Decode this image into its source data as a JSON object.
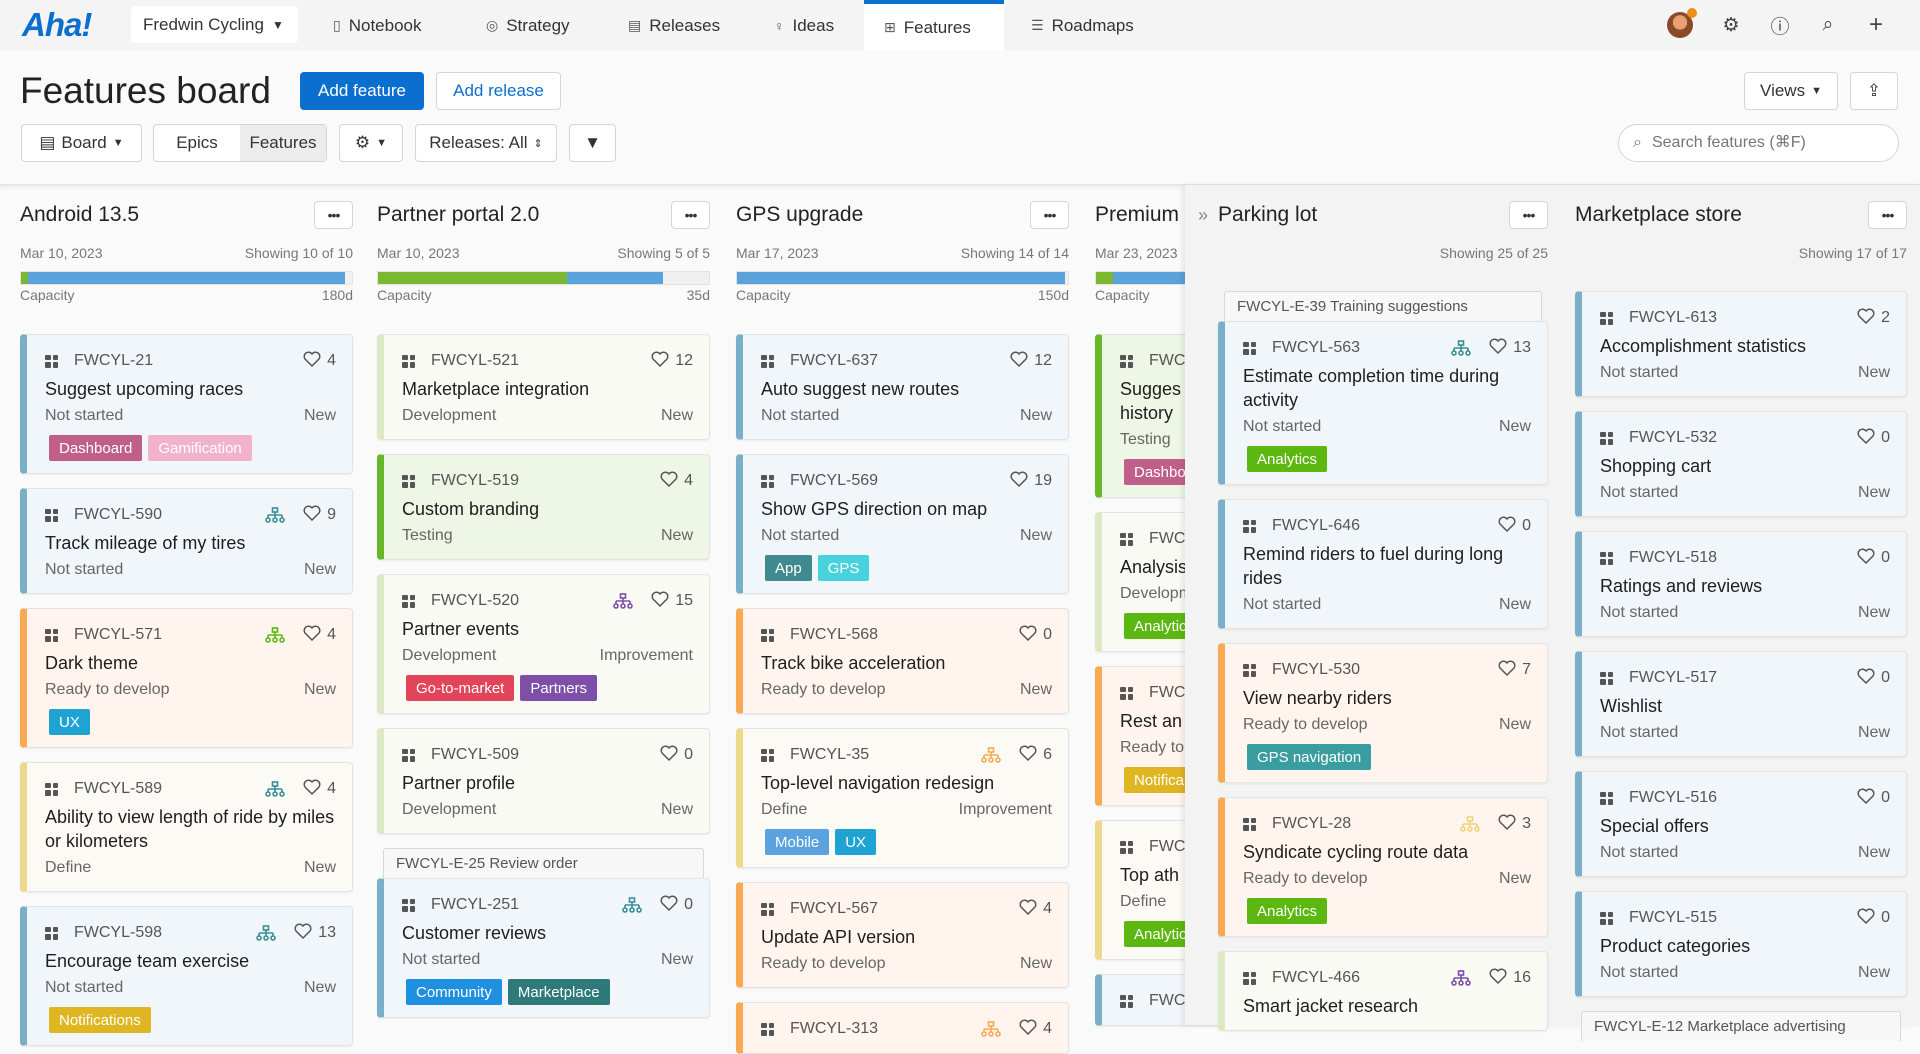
{
  "app": {
    "logo": "Aha!",
    "workspace": "Fredwin Cycling"
  },
  "nav": [
    {
      "label": "Notebook",
      "icon": "notebook-icon"
    },
    {
      "label": "Strategy",
      "icon": "target-icon"
    },
    {
      "label": "Releases",
      "icon": "calendar-icon"
    },
    {
      "label": "Ideas",
      "icon": "lightbulb-icon"
    },
    {
      "label": "Features",
      "icon": "grid-icon",
      "active": true
    },
    {
      "label": "Roadmaps",
      "icon": "roadmap-icon"
    }
  ],
  "header": {
    "title": "Features board",
    "add_feature": "Add feature",
    "add_release": "Add release",
    "views": "Views"
  },
  "toolbar": {
    "board": "Board",
    "epics": "Epics",
    "features": "Features",
    "releases": "Releases: All",
    "search_placeholder": "Search features (⌘F)"
  },
  "colors": {
    "accent": "#0b6fd0"
  },
  "columns": [
    {
      "name": "Android 13.5",
      "date": "Mar 10, 2023",
      "showing": "Showing 10 of 10",
      "capacity": "Capacity",
      "capacity_value": "180d",
      "progress_green": 0.02,
      "progress_blue": 0.98,
      "cards": [
        {
          "id": "FWCYL-21",
          "title": "Suggest upcoming races",
          "status": "Not started",
          "type": "New",
          "votes": "4",
          "color": "blue",
          "tags": [
            {
              "label": "Dashboard",
              "color": "#c0608a"
            },
            {
              "label": "Gamification",
              "color": "#f0b3c9"
            }
          ]
        },
        {
          "id": "FWCYL-590",
          "title": "Track mileage of my tires",
          "status": "Not started",
          "type": "New",
          "votes": "9",
          "color": "blue",
          "hier": "#3a8f96",
          "tags": []
        },
        {
          "id": "FWCYL-571",
          "title": "Dark theme",
          "status": "Ready to develop",
          "type": "New",
          "votes": "4",
          "color": "orange",
          "hier": "#5cb811",
          "tags": [
            {
              "label": "UX",
              "color": "#1fa3d3"
            }
          ]
        },
        {
          "id": "FWCYL-589",
          "title": "Ability to view length of ride by miles or kilometers",
          "status": "Define",
          "type": "New",
          "votes": "4",
          "color": "yellow",
          "hier": "#3a8f96",
          "tags": []
        },
        {
          "id": "FWCYL-598",
          "title": "Encourage team exercise",
          "status": "Not started",
          "type": "New",
          "votes": "13",
          "color": "blue",
          "hier": "#3a8f96",
          "tags": [
            {
              "label": "Notifications",
              "color": "#e0b522"
            }
          ]
        }
      ]
    },
    {
      "name": "Partner portal 2.0",
      "date": "Mar 10, 2023",
      "showing": "Showing 5 of 5",
      "capacity": "Capacity",
      "capacity_value": "35d",
      "progress_green": 0.57,
      "progress_blue": 0.86,
      "cards": [
        {
          "id": "FWCYL-521",
          "title": "Marketplace integration",
          "status": "Development",
          "type": "New",
          "votes": "12",
          "color": "lgreen",
          "tags": []
        },
        {
          "id": "FWCYL-519",
          "title": "Custom branding",
          "status": "Testing",
          "type": "New",
          "votes": "4",
          "color": "green",
          "tags": []
        },
        {
          "id": "FWCYL-520",
          "title": "Partner events",
          "status": "Development",
          "type": "Improvement",
          "votes": "15",
          "color": "lgreen",
          "hier": "#7d4fa8",
          "tags": [
            {
              "label": "Go-to-market",
              "color": "#e2455a"
            },
            {
              "label": "Partners",
              "color": "#7d4fa8"
            }
          ]
        },
        {
          "id": "FWCYL-509",
          "title": "Partner profile",
          "status": "Development",
          "type": "New",
          "votes": "0",
          "color": "lgreen",
          "tags": []
        },
        {
          "epic": "FWCYL-E-25 Review order",
          "id": "FWCYL-251",
          "title": "Customer reviews",
          "status": "Not started",
          "type": "New",
          "votes": "0",
          "color": "blue",
          "hier": "#3a8f96",
          "tags": [
            {
              "label": "Community",
              "color": "#1f8fe0"
            },
            {
              "label": "Marketplace",
              "color": "#2e7a7a"
            }
          ]
        }
      ]
    },
    {
      "name": "GPS upgrade",
      "date": "Mar 17, 2023",
      "showing": "Showing 14 of 14",
      "capacity": "Capacity",
      "capacity_value": "150d",
      "progress_green": 0,
      "progress_blue": 0.99,
      "cards": [
        {
          "id": "FWCYL-637",
          "title": "Auto suggest new routes",
          "status": "Not started",
          "type": "New",
          "votes": "12",
          "color": "blue",
          "tags": []
        },
        {
          "id": "FWCYL-569",
          "title": "Show GPS direction on map",
          "status": "Not started",
          "type": "New",
          "votes": "19",
          "color": "blue",
          "tags": [
            {
              "label": "App",
              "color": "#3f8a8f"
            },
            {
              "label": "GPS",
              "color": "#48d3dc"
            }
          ]
        },
        {
          "id": "FWCYL-568",
          "title": "Track bike acceleration",
          "status": "Ready to develop",
          "type": "New",
          "votes": "0",
          "color": "orange",
          "tags": []
        },
        {
          "id": "FWCYL-35",
          "title": "Top-level navigation redesign",
          "status": "Define",
          "type": "Improvement",
          "votes": "6",
          "color": "yellow",
          "hier": "#f7aa52",
          "tags": [
            {
              "label": "Mobile",
              "color": "#5aa3e0"
            },
            {
              "label": "UX",
              "color": "#1fa3d3"
            }
          ]
        },
        {
          "id": "FWCYL-567",
          "title": "Update API version",
          "status": "Ready to develop",
          "type": "New",
          "votes": "4",
          "color": "orange",
          "tags": []
        },
        {
          "id": "FWCYL-313",
          "title": "",
          "status": "",
          "type": "",
          "votes": "4",
          "color": "orange",
          "hier": "#f7aa52",
          "tags": []
        }
      ]
    },
    {
      "name": "Premium",
      "date": "Mar 23, 2023",
      "showing": "",
      "capacity": "Capacity",
      "capacity_value": "",
      "progress_green": 0.05,
      "progress_blue": 1,
      "cards": [
        {
          "id": "FWC",
          "title": "Sugges\nhistory",
          "status": "Testing",
          "type": "",
          "votes": "",
          "color": "green",
          "tags": [
            {
              "label": "Dashbo",
              "color": "#c0608a"
            }
          ]
        },
        {
          "id": "FWC",
          "title": "Analysis",
          "status": "Developm",
          "type": "",
          "votes": "",
          "color": "lgreen",
          "tags": [
            {
              "label": "Analytic",
              "color": "#5cb811"
            }
          ]
        },
        {
          "id": "FWC",
          "title": "Rest an",
          "status": "Ready to",
          "type": "",
          "votes": "",
          "color": "orange",
          "tags": [
            {
              "label": "Notifica",
              "color": "#e0b522"
            }
          ]
        },
        {
          "id": "FWC",
          "title": "Top ath",
          "status": "Define",
          "type": "",
          "votes": "",
          "color": "yellow",
          "tags": [
            {
              "label": "Analytic",
              "color": "#5cb811"
            }
          ]
        },
        {
          "id": "FWC",
          "title": "",
          "status": "",
          "type": "",
          "votes": "",
          "color": "blue",
          "tags": []
        }
      ]
    }
  ],
  "parking": [
    {
      "name": "Parking lot",
      "showing": "Showing 25 of 25",
      "cards": [
        {
          "epic": "FWCYL-E-39 Training suggestions",
          "id": "FWCYL-563",
          "title": "Estimate completion time during activity",
          "status": "Not started",
          "type": "New",
          "votes": "13",
          "color": "blue",
          "hier": "#3a8f96",
          "tags": [
            {
              "label": "Analytics",
              "color": "#5cb811"
            }
          ]
        },
        {
          "id": "FWCYL-646",
          "title": "Remind riders to fuel during long rides",
          "status": "Not started",
          "type": "New",
          "votes": "0",
          "color": "blue",
          "tags": []
        },
        {
          "id": "FWCYL-530",
          "title": "View nearby riders",
          "status": "Ready to develop",
          "type": "New",
          "votes": "7",
          "color": "orange",
          "tags": [
            {
              "label": "GPS navigation",
              "color": "#3a9ea0"
            }
          ]
        },
        {
          "id": "FWCYL-28",
          "title": "Syndicate cycling route data",
          "status": "Ready to develop",
          "type": "New",
          "votes": "3",
          "color": "orange",
          "hier": "#f2d27a",
          "tags": [
            {
              "label": "Analytics",
              "color": "#5cb811"
            }
          ]
        },
        {
          "id": "FWCYL-466",
          "title": "Smart jacket research",
          "status": "",
          "type": "",
          "votes": "16",
          "color": "lgreen",
          "hier": "#7d4fa8",
          "tags": []
        }
      ]
    },
    {
      "name": "Marketplace store",
      "showing": "Showing 17 of 17",
      "cards": [
        {
          "id": "FWCYL-613",
          "title": "Accomplishment statistics",
          "status": "Not started",
          "type": "New",
          "votes": "2",
          "color": "blue",
          "tags": []
        },
        {
          "id": "FWCYL-532",
          "title": "Shopping cart",
          "status": "Not started",
          "type": "New",
          "votes": "0",
          "color": "blue",
          "tags": []
        },
        {
          "id": "FWCYL-518",
          "title": "Ratings and reviews",
          "status": "Not started",
          "type": "New",
          "votes": "0",
          "color": "blue",
          "tags": []
        },
        {
          "id": "FWCYL-517",
          "title": "Wishlist",
          "status": "Not started",
          "type": "New",
          "votes": "0",
          "color": "blue",
          "tags": []
        },
        {
          "id": "FWCYL-516",
          "title": "Special offers",
          "status": "Not started",
          "type": "New",
          "votes": "0",
          "color": "blue",
          "tags": []
        },
        {
          "id": "FWCYL-515",
          "title": "Product categories",
          "status": "Not started",
          "type": "New",
          "votes": "0",
          "color": "blue",
          "tags": []
        },
        {
          "epic": "FWCYL-E-12 Marketplace advertising",
          "id": "",
          "title": "",
          "status": "",
          "type": "",
          "votes": "",
          "color": "blue",
          "tags": []
        }
      ]
    }
  ]
}
